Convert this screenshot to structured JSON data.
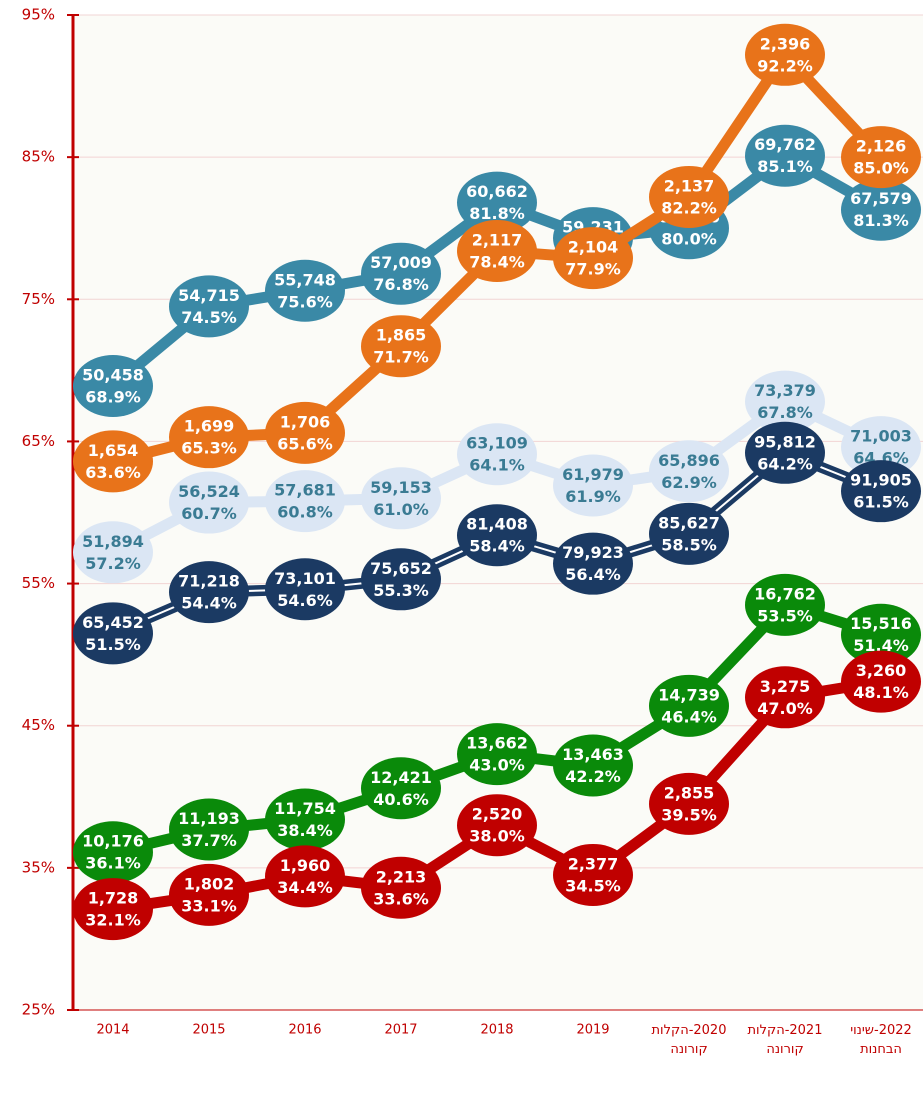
{
  "chart_data": {
    "type": "line",
    "categories": [
      "2014",
      "2015",
      "2016",
      "2017",
      "2018",
      "2019",
      "2020-הקלות קורונה",
      "2021-הקלות קורונה",
      "2022-שינוי הבחנות"
    ],
    "ylim": [
      25,
      95
    ],
    "yticks": [
      {
        "value": 25,
        "label": "25%"
      },
      {
        "value": 35,
        "label": "35%"
      },
      {
        "value": 45,
        "label": "45%"
      },
      {
        "value": 55,
        "label": "55%"
      },
      {
        "value": 65,
        "label": "65%"
      },
      {
        "value": 75,
        "label": "75%"
      },
      {
        "value": 85,
        "label": "85%"
      },
      {
        "value": 95,
        "label": "95%"
      }
    ],
    "grid": true,
    "series": [
      {
        "color": "#3a89a6",
        "text_color": "#ffffff",
        "values": [
          68.9,
          74.5,
          75.6,
          76.8,
          81.8,
          79.3,
          80.0,
          85.1,
          81.3
        ],
        "value_labels": [
          "68.9%",
          "74.5%",
          "75.6%",
          "76.8%",
          "81.8%",
          "79.3%",
          "80.0%",
          "85.1%",
          "81.3%"
        ],
        "count_labels": [
          "50,458",
          "54,715",
          "55,748",
          "57,009",
          "60,662",
          "59,231",
          "62,936",
          "69,762",
          "67,579"
        ]
      },
      {
        "color": "#e8731a",
        "text_color": "#ffffff",
        "values": [
          63.6,
          65.3,
          65.6,
          71.7,
          78.4,
          77.9,
          82.2,
          92.2,
          85.0
        ],
        "value_labels": [
          "63.6%",
          "65.3%",
          "65.6%",
          "71.7%",
          "78.4%",
          "77.9%",
          "82.2%",
          "92.2%",
          "85.0%"
        ],
        "count_labels": [
          "1,654",
          "1,699",
          "1,706",
          "1,865",
          "2,117",
          "2,104",
          "2,137",
          "2,396",
          "2,126"
        ]
      },
      {
        "color": "#dbe6f4",
        "text_color": "#3a7b93",
        "values": [
          57.2,
          60.7,
          60.8,
          61.0,
          64.1,
          61.9,
          62.9,
          67.8,
          64.6
        ],
        "value_labels": [
          "57.2%",
          "60.7%",
          "60.8%",
          "61.0%",
          "64.1%",
          "61.9%",
          "62.9%",
          "67.8%",
          "64.6%"
        ],
        "count_labels": [
          "51,894",
          "56,524",
          "57,681",
          "59,153",
          "63,109",
          "61,979",
          "65,896",
          "73,379",
          "71,003"
        ]
      },
      {
        "color": "#1b3a63",
        "text_color": "#ffffff",
        "values": [
          51.5,
          54.4,
          54.6,
          55.3,
          58.4,
          56.4,
          58.5,
          64.2,
          61.5
        ],
        "value_labels": [
          "51.5%",
          "54.4%",
          "54.6%",
          "55.3%",
          "58.4%",
          "56.4%",
          "58.5%",
          "64.2%",
          "61.5%"
        ],
        "count_labels": [
          "65,452",
          "71,218",
          "73,101",
          "75,652",
          "81,408",
          "79,923",
          "85,627",
          "95,812",
          "91,905"
        ]
      },
      {
        "color": "#0a8a0a",
        "text_color": "#ffffff",
        "values": [
          36.1,
          37.7,
          38.4,
          40.6,
          43.0,
          42.2,
          46.4,
          53.5,
          51.4
        ],
        "value_labels": [
          "36.1%",
          "37.7%",
          "38.4%",
          "40.6%",
          "43.0%",
          "42.2%",
          "46.4%",
          "53.5%",
          "51.4%"
        ],
        "count_labels": [
          "10,176",
          "11,193",
          "11,754",
          "12,421",
          "13,662",
          "13,463",
          "14,739",
          "16,762",
          "15,516"
        ]
      },
      {
        "color": "#c00000",
        "text_color": "#ffffff",
        "values": [
          32.1,
          33.1,
          34.4,
          33.6,
          38.0,
          34.5,
          39.5,
          47.0,
          48.1
        ],
        "value_labels": [
          "32.1%",
          "33.1%",
          "34.4%",
          "33.6%",
          "38.0%",
          "34.5%",
          "39.5%",
          "47.0%",
          "48.1%"
        ],
        "count_labels": [
          "1,728",
          "1,802",
          "1,960",
          "2,213",
          "2,520",
          "2,377",
          "2,855",
          "3,275",
          "3,260"
        ]
      }
    ]
  }
}
